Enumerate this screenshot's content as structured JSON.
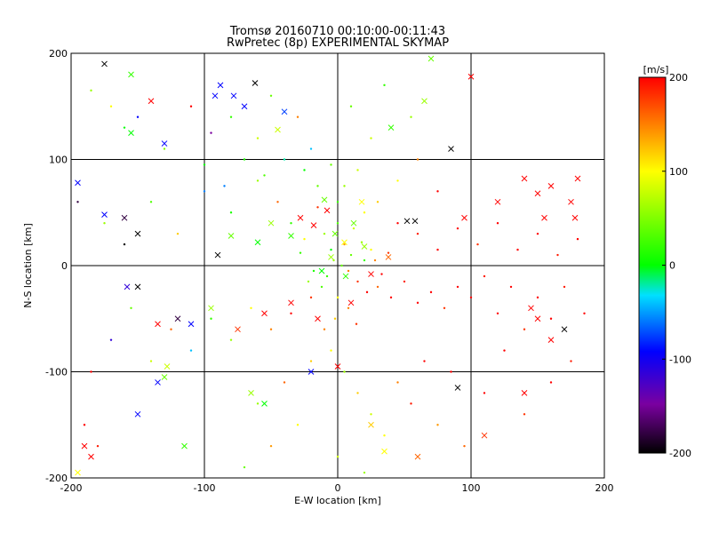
{
  "chart_data": {
    "type": "scatter",
    "title": "Tromsø 20160710 00:10:00-00:11:43",
    "subtitle": "RwPretec (8p) EXPERIMENTAL SKYMAP",
    "xlabel": "E-W location [km]",
    "ylabel": "N-S location [km]",
    "xlim": [
      -200,
      200
    ],
    "ylim": [
      -200,
      200
    ],
    "xticks": [
      "-200",
      "-100",
      "0",
      "100",
      "200"
    ],
    "yticks": [
      "-200",
      "-100",
      "0",
      "100",
      "200"
    ],
    "grid": true,
    "colorbar": {
      "label": "[m/s]",
      "range": [
        -200,
        200
      ],
      "ticks": [
        "-200",
        "-100",
        "0",
        "100",
        "200"
      ],
      "colormap": "black-purple-blue-cyan-green-yellow-red"
    },
    "series": [
      {
        "marker": "dot",
        "points": [
          [
            -185,
            165,
            60
          ],
          [
            -170,
            150,
            100
          ],
          [
            -160,
            130,
            0
          ],
          [
            -150,
            140,
            -100
          ],
          [
            -130,
            110,
            50
          ],
          [
            -110,
            150,
            200
          ],
          [
            -95,
            125,
            -150
          ],
          [
            -80,
            140,
            20
          ],
          [
            -60,
            120,
            80
          ],
          [
            -50,
            160,
            40
          ],
          [
            -30,
            140,
            150
          ],
          [
            -20,
            110,
            -40
          ],
          [
            -195,
            60,
            -180
          ],
          [
            -175,
            40,
            60
          ],
          [
            -160,
            20,
            -200
          ],
          [
            -140,
            60,
            30
          ],
          [
            -120,
            30,
            120
          ],
          [
            -100,
            70,
            -60
          ],
          [
            -80,
            50,
            10
          ],
          [
            -60,
            80,
            60
          ],
          [
            -45,
            60,
            160
          ],
          [
            -35,
            40,
            20
          ],
          [
            -25,
            25,
            100
          ],
          [
            -15,
            55,
            180
          ],
          [
            -10,
            30,
            60
          ],
          [
            -5,
            15,
            0
          ],
          [
            0,
            40,
            30
          ],
          [
            5,
            20,
            140
          ],
          [
            10,
            10,
            40
          ],
          [
            12,
            35,
            80
          ],
          [
            18,
            22,
            60
          ],
          [
            20,
            5,
            20
          ],
          [
            25,
            15,
            100
          ],
          [
            8,
            -5,
            150
          ],
          [
            3,
            0,
            40
          ],
          [
            -3,
            5,
            60
          ],
          [
            -8,
            -10,
            20
          ],
          [
            15,
            -15,
            180
          ],
          [
            22,
            -25,
            200
          ],
          [
            30,
            -20,
            160
          ],
          [
            40,
            -30,
            200
          ],
          [
            50,
            -15,
            190
          ],
          [
            60,
            -35,
            200
          ],
          [
            70,
            -25,
            200
          ],
          [
            80,
            -40,
            180
          ],
          [
            90,
            -20,
            200
          ],
          [
            100,
            -30,
            200
          ],
          [
            110,
            -10,
            190
          ],
          [
            120,
            -45,
            200
          ],
          [
            130,
            -20,
            200
          ],
          [
            140,
            -60,
            180
          ],
          [
            150,
            -30,
            200
          ],
          [
            160,
            -50,
            200
          ],
          [
            170,
            -20,
            190
          ],
          [
            185,
            -45,
            200
          ],
          [
            45,
            40,
            200
          ],
          [
            60,
            30,
            190
          ],
          [
            75,
            15,
            200
          ],
          [
            90,
            35,
            200
          ],
          [
            105,
            20,
            180
          ],
          [
            120,
            40,
            200
          ],
          [
            135,
            15,
            200
          ],
          [
            150,
            30,
            200
          ],
          [
            165,
            10,
            190
          ],
          [
            180,
            25,
            200
          ],
          [
            30,
            60,
            120
          ],
          [
            45,
            80,
            100
          ],
          [
            60,
            100,
            150
          ],
          [
            75,
            70,
            200
          ],
          [
            25,
            120,
            80
          ],
          [
            10,
            150,
            40
          ],
          [
            35,
            170,
            20
          ],
          [
            55,
            140,
            60
          ],
          [
            -20,
            -30,
            180
          ],
          [
            -35,
            -45,
            200
          ],
          [
            -50,
            -60,
            150
          ],
          [
            -65,
            -40,
            100
          ],
          [
            -80,
            -70,
            60
          ],
          [
            -95,
            -50,
            20
          ],
          [
            -110,
            -80,
            -40
          ],
          [
            -125,
            -60,
            160
          ],
          [
            -140,
            -90,
            80
          ],
          [
            -155,
            -40,
            40
          ],
          [
            -170,
            -70,
            -120
          ],
          [
            -185,
            -100,
            200
          ],
          [
            -190,
            -150,
            200
          ],
          [
            -180,
            -170,
            190
          ],
          [
            -10,
            -60,
            150
          ],
          [
            -5,
            -80,
            100
          ],
          [
            5,
            -100,
            60
          ],
          [
            15,
            -120,
            120
          ],
          [
            25,
            -140,
            80
          ],
          [
            35,
            -160,
            100
          ],
          [
            45,
            -110,
            150
          ],
          [
            55,
            -130,
            190
          ],
          [
            65,
            -90,
            200
          ],
          [
            75,
            -150,
            140
          ],
          [
            85,
            -100,
            200
          ],
          [
            95,
            -170,
            160
          ],
          [
            110,
            -120,
            200
          ],
          [
            125,
            -80,
            200
          ],
          [
            140,
            -140,
            180
          ],
          [
            160,
            -110,
            200
          ],
          [
            175,
            -90,
            190
          ],
          [
            -20,
            -90,
            120
          ],
          [
            -40,
            -110,
            160
          ],
          [
            -60,
            -130,
            60
          ],
          [
            -30,
            -150,
            100
          ],
          [
            -50,
            -170,
            140
          ],
          [
            -70,
            -190,
            40
          ],
          [
            0,
            -180,
            80
          ],
          [
            20,
            -195,
            60
          ],
          [
            -15,
            75,
            40
          ],
          [
            -25,
            90,
            0
          ],
          [
            -40,
            100,
            -20
          ],
          [
            -55,
            85,
            30
          ],
          [
            -70,
            100,
            10
          ],
          [
            -85,
            75,
            -60
          ],
          [
            -100,
            95,
            0
          ],
          [
            0,
            60,
            20
          ],
          [
            5,
            75,
            60
          ],
          [
            15,
            90,
            80
          ],
          [
            -5,
            95,
            40
          ],
          [
            20,
            50,
            100
          ],
          [
            -12,
            -20,
            30
          ],
          [
            -18,
            -5,
            10
          ],
          [
            28,
            5,
            150
          ],
          [
            33,
            -8,
            200
          ],
          [
            38,
            12,
            180
          ],
          [
            -28,
            12,
            20
          ],
          [
            -22,
            -15,
            60
          ],
          [
            0,
            -30,
            100
          ],
          [
            8,
            -40,
            150
          ],
          [
            -2,
            -50,
            120
          ],
          [
            14,
            -55,
            180
          ]
        ]
      },
      {
        "marker": "x",
        "points": [
          [
            -175,
            190,
            -200
          ],
          [
            -155,
            180,
            20
          ],
          [
            -140,
            155,
            200
          ],
          [
            -155,
            125,
            0
          ],
          [
            -130,
            115,
            -100
          ],
          [
            -92,
            160,
            -100
          ],
          [
            -88,
            170,
            -100
          ],
          [
            -78,
            160,
            -100
          ],
          [
            -70,
            150,
            -100
          ],
          [
            -62,
            172,
            -200
          ],
          [
            -45,
            128,
            80
          ],
          [
            -40,
            145,
            -80
          ],
          [
            -160,
            45,
            -180
          ],
          [
            -195,
            78,
            -100
          ],
          [
            -175,
            48,
            -100
          ],
          [
            -150,
            30,
            -200
          ],
          [
            -90,
            10,
            -200
          ],
          [
            -80,
            28,
            40
          ],
          [
            -60,
            22,
            0
          ],
          [
            -50,
            40,
            60
          ],
          [
            -35,
            28,
            20
          ],
          [
            -28,
            45,
            200
          ],
          [
            -18,
            38,
            200
          ],
          [
            -8,
            52,
            200
          ],
          [
            5,
            22,
            100
          ],
          [
            12,
            40,
            40
          ],
          [
            18,
            60,
            100
          ],
          [
            38,
            8,
            160
          ],
          [
            52,
            42,
            -200
          ],
          [
            58,
            42,
            -200
          ],
          [
            85,
            110,
            -200
          ],
          [
            65,
            155,
            60
          ],
          [
            40,
            130,
            20
          ],
          [
            70,
            195,
            40
          ],
          [
            100,
            178,
            200
          ],
          [
            140,
            82,
            200
          ],
          [
            150,
            68,
            200
          ],
          [
            160,
            75,
            200
          ],
          [
            175,
            60,
            200
          ],
          [
            180,
            82,
            200
          ],
          [
            178,
            45,
            200
          ],
          [
            155,
            45,
            200
          ],
          [
            120,
            60,
            200
          ],
          [
            95,
            45,
            200
          ],
          [
            170,
            -60,
            -200
          ],
          [
            150,
            -50,
            200
          ],
          [
            160,
            -70,
            200
          ],
          [
            145,
            -40,
            200
          ],
          [
            25,
            -8,
            200
          ],
          [
            10,
            -35,
            200
          ],
          [
            -15,
            -50,
            200
          ],
          [
            -35,
            -35,
            200
          ],
          [
            -55,
            -45,
            200
          ],
          [
            -75,
            -60,
            180
          ],
          [
            -95,
            -40,
            60
          ],
          [
            -110,
            -55,
            -100
          ],
          [
            -120,
            -50,
            -180
          ],
          [
            -135,
            -55,
            200
          ],
          [
            -150,
            -20,
            -200
          ],
          [
            -158,
            -20,
            -120
          ],
          [
            -128,
            -95,
            80
          ],
          [
            -130,
            -105,
            40
          ],
          [
            -135,
            -110,
            -100
          ],
          [
            -150,
            -140,
            -100
          ],
          [
            -115,
            -170,
            20
          ],
          [
            -65,
            -120,
            60
          ],
          [
            -55,
            -130,
            0
          ],
          [
            -20,
            -100,
            -100
          ],
          [
            0,
            -95,
            200
          ],
          [
            25,
            -150,
            120
          ],
          [
            35,
            -175,
            100
          ],
          [
            60,
            -180,
            160
          ],
          [
            90,
            -115,
            -200
          ],
          [
            110,
            -160,
            180
          ],
          [
            140,
            -120,
            200
          ],
          [
            -190,
            -170,
            200
          ],
          [
            -195,
            -195,
            100
          ],
          [
            -185,
            -180,
            200
          ],
          [
            -10,
            62,
            40
          ],
          [
            -2,
            30,
            40
          ],
          [
            -12,
            -5,
            0
          ],
          [
            6,
            -10,
            20
          ],
          [
            20,
            18,
            60
          ],
          [
            -5,
            8,
            60
          ]
        ]
      }
    ]
  }
}
